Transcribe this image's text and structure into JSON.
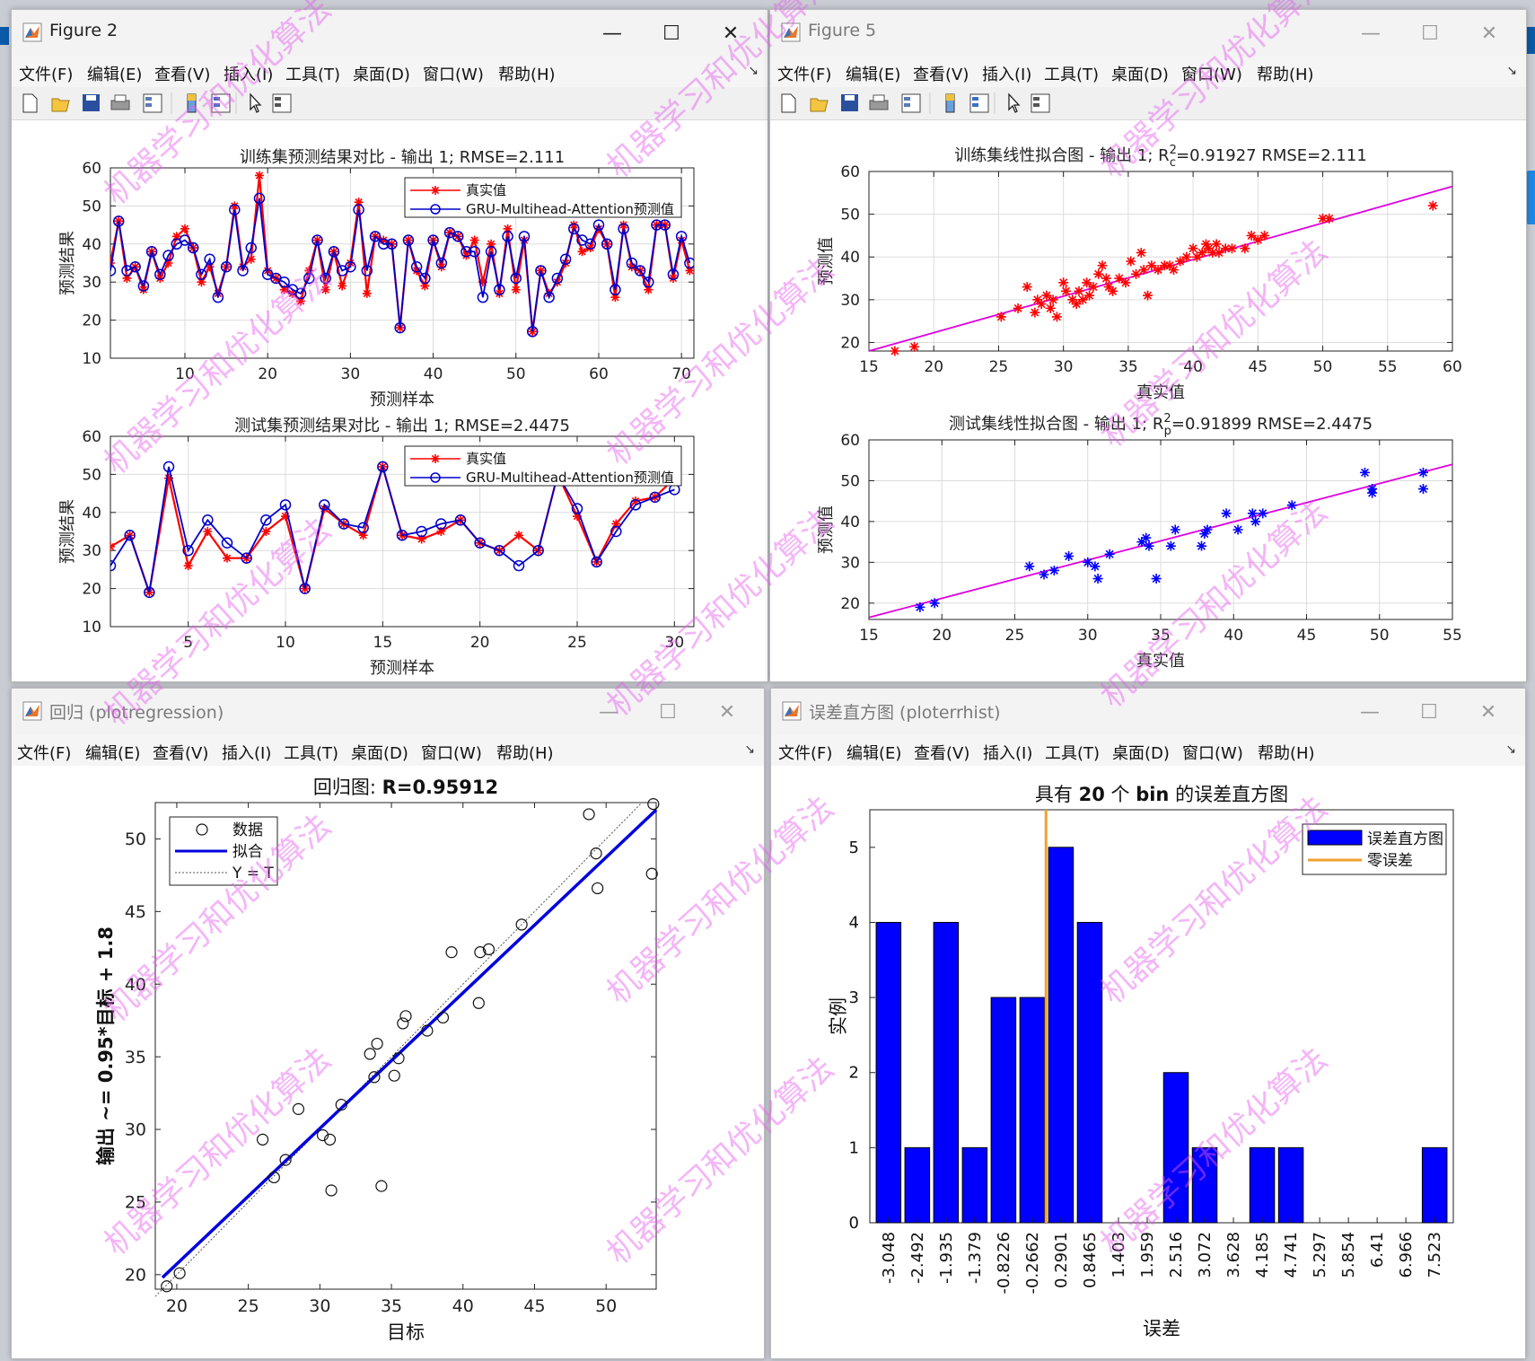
{
  "win_fig2": {
    "title": "Figure 2",
    "menu": [
      "文件(F)",
      "编辑(E)",
      "查看(V)",
      "插入(I)",
      "工具(T)",
      "桌面(D)",
      "窗口(W)",
      "帮助(H)"
    ],
    "top": {
      "title": "训练集预测结果对比 - 输出 1; RMSE=2.111",
      "xlabel": "预测样本",
      "ylabel": "预测结果",
      "xticks": [
        "10",
        "20",
        "30",
        "40",
        "50",
        "60",
        "70"
      ],
      "yticks": [
        "10",
        "20",
        "30",
        "40",
        "50",
        "60"
      ],
      "legend": [
        "真实值",
        "GRU-Multihead-Attention预测值"
      ]
    },
    "bottom": {
      "title": "测试集预测结果对比 - 输出 1; RMSE=2.4475",
      "xlabel": "预测样本",
      "ylabel": "预测结果",
      "xticks": [
        "5",
        "10",
        "15",
        "20",
        "25",
        "30"
      ],
      "yticks": [
        "10",
        "20",
        "30",
        "40",
        "50",
        "60"
      ],
      "legend": [
        "真实值",
        "GRU-Multihead-Attention预测值"
      ]
    }
  },
  "win_fig5": {
    "title": "Figure 5",
    "menu": [
      "文件(F)",
      "编辑(E)",
      "查看(V)",
      "插入(I)",
      "工具(T)",
      "桌面(D)",
      "窗口(W)",
      "帮助(H)"
    ],
    "top": {
      "title_main": "训练集线性拟合图 - 输出 1; R",
      "title_sup": "2",
      "title_sub": "c",
      "title_rest": "=0.91927  RMSE=2.111",
      "xlabel": "真实值",
      "ylabel": "预测值",
      "xticks": [
        "15",
        "20",
        "25",
        "30",
        "35",
        "40",
        "45",
        "50",
        "55",
        "60"
      ],
      "yticks": [
        "20",
        "30",
        "40",
        "50",
        "60"
      ]
    },
    "bottom": {
      "title_main": "测试集线性拟合图 - 输出 1; R",
      "title_sup": "2",
      "title_sub": "p",
      "title_rest": "=0.91899  RMSE=2.4475",
      "xlabel": "真实值",
      "ylabel": "预测值",
      "xticks": [
        "15",
        "20",
        "25",
        "30",
        "35",
        "40",
        "45",
        "50",
        "55"
      ],
      "yticks": [
        "20",
        "30",
        "40",
        "50",
        "60"
      ]
    }
  },
  "win_reg": {
    "title": "回归 (plotregression)",
    "menu": [
      "文件(F)",
      "编辑(E)",
      "查看(V)",
      "插入(I)",
      "工具(T)",
      "桌面(D)",
      "窗口(W)",
      "帮助(H)"
    ],
    "title_prefix": "回归图: ",
    "title_value": "R=0.95912",
    "xlabel": "目标",
    "ylabel": "输出 ~= 0.95*目标 + 1.8",
    "xticks": [
      "20",
      "25",
      "30",
      "35",
      "40",
      "45",
      "50"
    ],
    "yticks": [
      "20",
      "25",
      "30",
      "35",
      "40",
      "45",
      "50"
    ],
    "legend": [
      "数据",
      "拟合",
      "Y = T"
    ]
  },
  "win_hist": {
    "title": "误差直方图 (ploterrhist)",
    "menu": [
      "文件(F)",
      "编辑(E)",
      "查看(V)",
      "插入(I)",
      "工具(T)",
      "桌面(D)",
      "窗口(W)",
      "帮助(H)"
    ],
    "title_pre": "具有 ",
    "title_num": "20",
    "title_mid": " 个 ",
    "title_bin": "bin",
    "title_post": " 的误差直方图",
    "xlabel": "误差",
    "ylabel": "实例",
    "yticks": [
      "0",
      "1",
      "2",
      "3",
      "4",
      "5"
    ],
    "legend": [
      "误差直方图",
      "零误差"
    ]
  },
  "watermark": "机器学习和优化算法",
  "chart_data": [
    {
      "type": "line",
      "name": "train_compare",
      "x_range": [
        1,
        71
      ],
      "ylim": [
        10,
        60
      ],
      "series": [
        {
          "name": "真实值",
          "color": "#ff0000",
          "values": [
            35,
            46,
            31,
            34,
            28,
            38,
            31,
            35,
            42,
            44,
            39,
            30,
            34,
            27,
            34,
            50,
            34,
            36,
            58,
            33,
            31,
            28,
            27,
            25,
            33,
            41,
            28,
            38,
            29,
            35,
            51,
            27,
            42,
            41,
            40,
            18,
            41,
            33,
            29,
            41,
            34,
            43,
            42,
            37,
            41,
            30,
            40,
            27,
            44,
            28,
            41,
            17,
            33,
            27,
            30,
            35,
            45,
            38,
            39,
            44,
            40,
            26,
            45,
            34,
            33,
            28,
            45,
            45,
            31,
            41,
            33
          ]
        },
        {
          "name": "GRU-Multihead-Attention预测值",
          "color": "#0000cc",
          "values": [
            33,
            46,
            33,
            34,
            29,
            38,
            32,
            37,
            40,
            41,
            39,
            32,
            36,
            26,
            34,
            49,
            33,
            39,
            52,
            32,
            31,
            30,
            28,
            27,
            31,
            41,
            31,
            38,
            33,
            34,
            49,
            33,
            42,
            40,
            40,
            18,
            41,
            34,
            31,
            41,
            35,
            43,
            42,
            38,
            38,
            26,
            38,
            28,
            42,
            31,
            42,
            17,
            33,
            26,
            31,
            36,
            44,
            41,
            40,
            45,
            40,
            28,
            44,
            35,
            33,
            30,
            45,
            45,
            32,
            42,
            35
          ]
        }
      ]
    },
    {
      "type": "line",
      "name": "test_compare",
      "x_range": [
        1,
        31
      ],
      "ylim": [
        10,
        60
      ],
      "series": [
        {
          "name": "真实值",
          "color": "#ff0000",
          "values": [
            31,
            34,
            19,
            49,
            26,
            35,
            28,
            28,
            35,
            39,
            20,
            41,
            37,
            34,
            52,
            34,
            33,
            35,
            38,
            32,
            30,
            34,
            30,
            50,
            39,
            27,
            37,
            43,
            44,
            49
          ]
        },
        {
          "name": "GRU-Multihead-Attention预测值",
          "color": "#0000cc",
          "values": [
            26,
            34,
            19,
            52,
            30,
            38,
            32,
            28,
            38,
            42,
            20,
            42,
            37,
            36,
            52,
            34,
            35,
            37,
            38,
            32,
            30,
            26,
            30,
            50,
            41,
            27,
            35,
            42,
            44,
            46
          ]
        }
      ]
    },
    {
      "type": "scatter",
      "name": "train_fit",
      "xlim": [
        15,
        60
      ],
      "ylim": [
        18,
        60
      ],
      "fit": [
        [
          15,
          18
        ],
        [
          60,
          56.5
        ]
      ],
      "x": [
        17,
        18.5,
        25.2,
        26.5,
        27.2,
        27.8,
        28,
        28.3,
        28.7,
        29,
        29.2,
        29.5,
        30,
        30.2,
        30.7,
        31,
        31.2,
        31.5,
        31.8,
        32,
        32.3,
        32.7,
        33,
        33.3,
        33.5,
        33.8,
        34.3,
        34.8,
        35.2,
        35.6,
        36,
        36.2,
        36.5,
        36.8,
        37.3,
        37.8,
        38.2,
        38.5,
        39,
        39.5,
        40,
        40.3,
        40.7,
        41,
        41.2,
        41.5,
        41.8,
        42,
        42.5,
        43,
        44,
        44.5,
        45,
        45.5,
        50,
        50.5,
        58.5
      ],
      "y": [
        18,
        19,
        26,
        28,
        33,
        27,
        30,
        29,
        31,
        28,
        30,
        26,
        34,
        32,
        30,
        29,
        32,
        30,
        34,
        31,
        33,
        36,
        38,
        35,
        33,
        32,
        35,
        34,
        39,
        36,
        41,
        37,
        31,
        38,
        37,
        38,
        38,
        37,
        39,
        40,
        42,
        40,
        41,
        43,
        42,
        41,
        43,
        41,
        42,
        42,
        42,
        45,
        44,
        45,
        49,
        49,
        52
      ]
    },
    {
      "type": "scatter",
      "name": "test_fit",
      "xlim": [
        15,
        55
      ],
      "ylim": [
        16,
        60
      ],
      "fit": [
        [
          15,
          16.5
        ],
        [
          55,
          54
        ]
      ],
      "x": [
        18.5,
        19.5,
        26,
        27,
        27.7,
        28.7,
        30,
        30.5,
        30.7,
        31.5,
        33.7,
        34,
        34.2,
        34.7,
        35.7,
        36,
        37.8,
        38,
        38.2,
        39.5,
        40.3,
        41.3,
        41.5,
        42,
        44,
        49,
        49.5,
        49.5,
        53,
        53
      ],
      "y": [
        19,
        20,
        29,
        27,
        28,
        31.5,
        30,
        29,
        26,
        32,
        35,
        36,
        34,
        26,
        34,
        38,
        34,
        37,
        38,
        42,
        38,
        42,
        40,
        42,
        44,
        52,
        48,
        47,
        52,
        48
      ]
    },
    {
      "type": "scatter",
      "name": "regression",
      "xlim": [
        18.5,
        53.5
      ],
      "ylim": [
        19,
        52.5
      ],
      "fit": [
        [
          19,
          19.8
        ],
        [
          53.5,
          52
        ]
      ],
      "identity": true,
      "x": [
        19.3,
        20.2,
        26,
        26.8,
        27.6,
        28.5,
        30.2,
        30.7,
        30.8,
        31.5,
        33.5,
        33.8,
        34,
        34.3,
        35.2,
        35.5,
        35.8,
        36,
        37.5,
        38.6,
        39.2,
        41.1,
        41.2,
        41.8,
        44.1,
        48.8,
        49.3,
        49.4,
        53.2,
        53.3
      ],
      "y": [
        19.2,
        20.1,
        29.3,
        26.7,
        27.9,
        31.4,
        29.6,
        29.3,
        25.8,
        31.7,
        35.2,
        33.6,
        35.9,
        26.1,
        33.7,
        34.9,
        37.3,
        37.8,
        36.8,
        37.7,
        42.2,
        38.7,
        42.2,
        42.4,
        44.1,
        51.7,
        49.0,
        46.6,
        47.6,
        52.4
      ]
    },
    {
      "type": "bar",
      "name": "error_hist",
      "categories": [
        "-3.048",
        "-2.492",
        "-1.935",
        "-1.379",
        "-0.8226",
        "-0.2662",
        "0.2901",
        "0.8465",
        "1.403",
        "1.959",
        "2.516",
        "3.072",
        "3.628",
        "4.185",
        "4.741",
        "5.297",
        "5.854",
        "6.41",
        "6.966",
        "7.523"
      ],
      "values": [
        4,
        1,
        4,
        1,
        3,
        3,
        5,
        4,
        0,
        0,
        2,
        1,
        0,
        1,
        1,
        0,
        0,
        0,
        0,
        1
      ],
      "ylim": [
        0,
        5.5
      ],
      "zero_error": 0,
      "colors": {
        "bar": "#0000ff",
        "zero": "#f0a030"
      }
    }
  ]
}
